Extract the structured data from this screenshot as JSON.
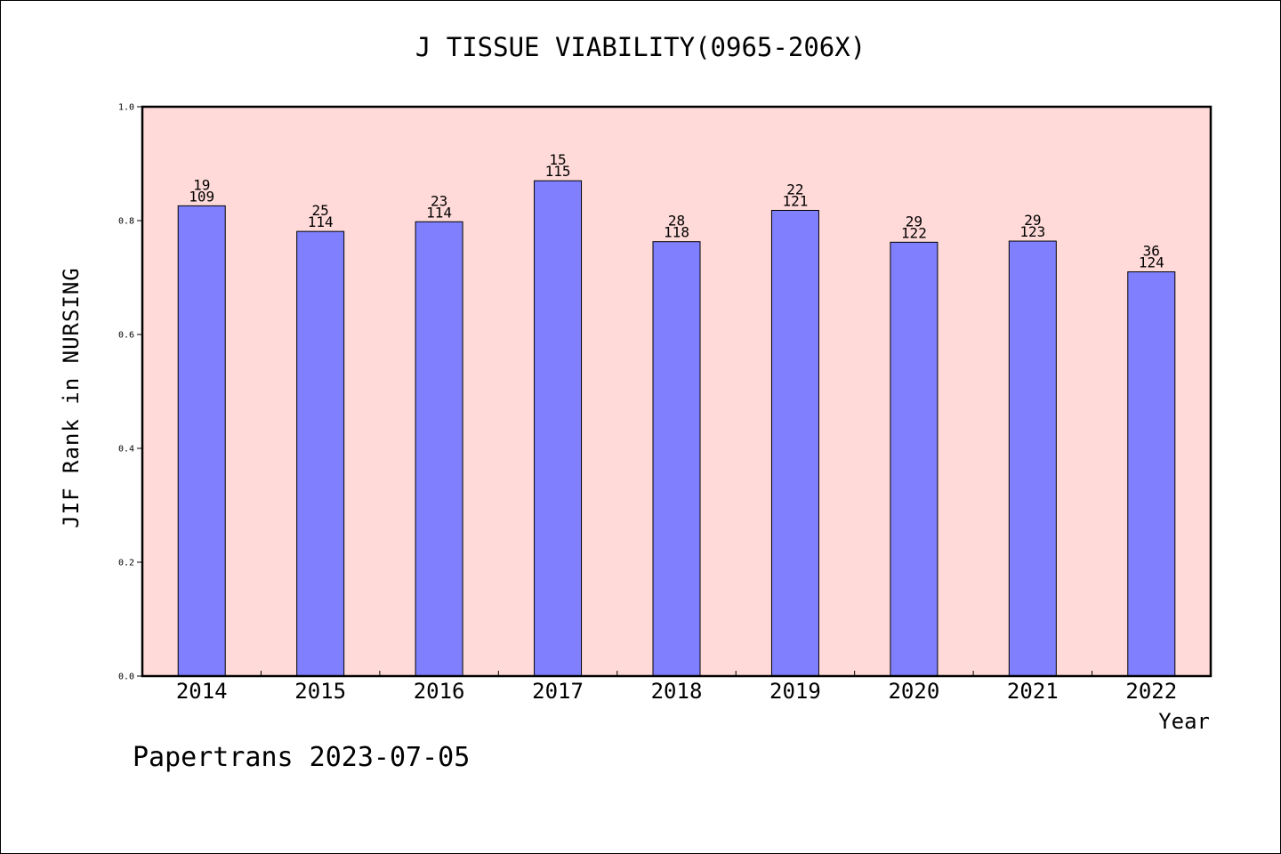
{
  "chart_data": {
    "type": "bar",
    "title": "J TISSUE VIABILITY(0965-206X)",
    "xlabel": "Year",
    "ylabel": "JIF Rank in NURSING",
    "categories": [
      "2014",
      "2015",
      "2016",
      "2017",
      "2018",
      "2019",
      "2020",
      "2021",
      "2022"
    ],
    "values": [
      0.826,
      0.781,
      0.798,
      0.87,
      0.763,
      0.818,
      0.762,
      0.764,
      0.71
    ],
    "rank_labels": [
      "19",
      "25",
      "23",
      "15",
      "28",
      "22",
      "29",
      "29",
      "36"
    ],
    "total_labels": [
      "109",
      "114",
      "114",
      "115",
      "118",
      "121",
      "122",
      "123",
      "124"
    ],
    "ylim": [
      0,
      1.0
    ],
    "yticks": [
      "0.0",
      "0.2",
      "0.4",
      "0.6",
      "0.8",
      "1.0"
    ],
    "grid": false,
    "colors": {
      "plot_bg": "#ffdad8",
      "bar": "#8080ff",
      "bar_edge": "#000000"
    }
  },
  "footer": "Papertrans 2023-07-05"
}
